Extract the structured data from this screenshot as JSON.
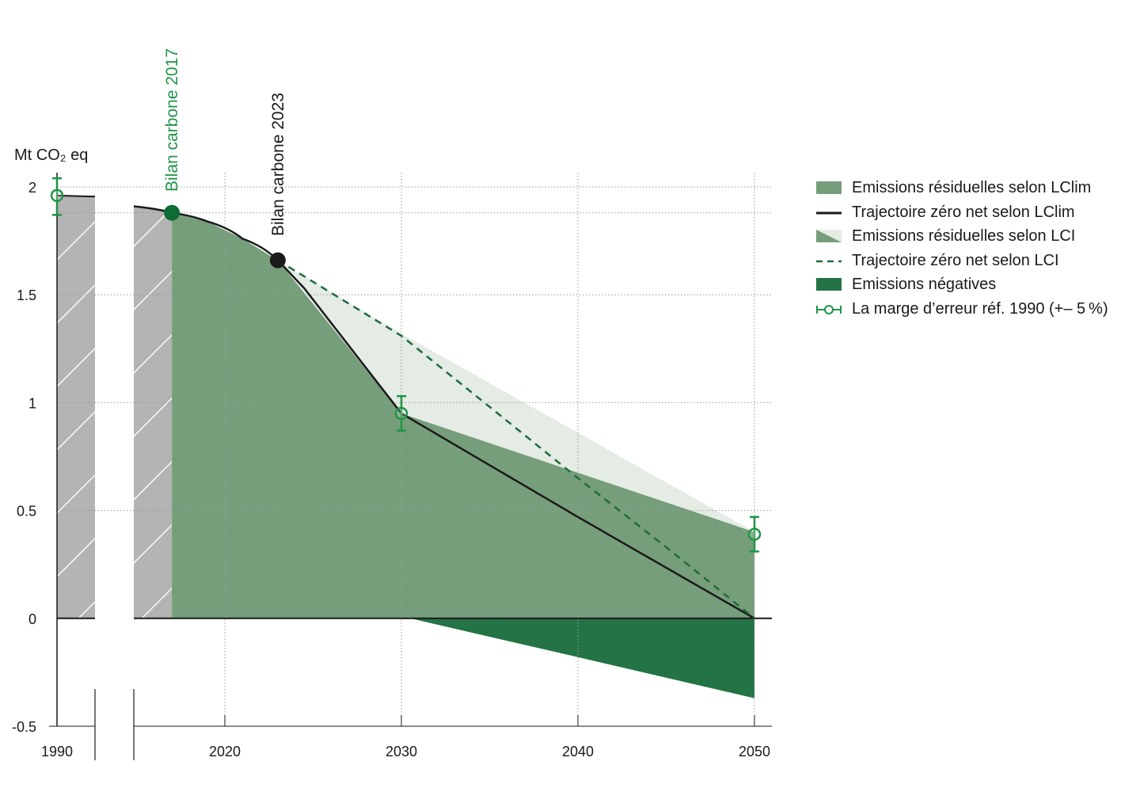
{
  "colors": {
    "lclim_residual": "#769e7a",
    "lci_residual": "#e4ece5",
    "negative": "#247345",
    "historic": "#b4b4b4",
    "lci_line": "#1f6b3d",
    "accent_green": "#1f9447",
    "dark_green": "#0d6b35",
    "axis": "#1a1a1a",
    "grid": "#999999"
  },
  "chart_data": {
    "type": "area",
    "ylabel": "Mt CO₂ eq",
    "ylim": [
      -0.5,
      2
    ],
    "y_ticks": [
      {
        "value": 2,
        "label": "2"
      },
      {
        "value": 1.5,
        "label": "1.5"
      },
      {
        "value": 1,
        "label": "1"
      },
      {
        "value": 0.5,
        "label": "0.5"
      },
      {
        "value": 0,
        "label": "0"
      },
      {
        "value": -0.5,
        "label": "-0.5"
      }
    ],
    "x_ticks": [
      {
        "value": 1990,
        "label": "1990"
      },
      {
        "value": 2020,
        "label": "2020"
      },
      {
        "value": 2030,
        "label": "2030"
      },
      {
        "value": 2040,
        "label": "2040"
      },
      {
        "value": 2050,
        "label": "2050"
      }
    ],
    "x_axis_break": "between 1990 and 2016",
    "grid": true,
    "legend_position": "right",
    "historic_emissions": [
      {
        "x": 1990,
        "y": 1.96
      },
      {
        "x": 2016,
        "y": 1.91
      },
      {
        "x": 2017,
        "y": 1.88
      }
    ],
    "series": [
      {
        "name": "Emissions résiduelles selon LClim",
        "kind": "area",
        "points": [
          {
            "x": 2017,
            "y": 1.88
          },
          {
            "x": 2020,
            "y": 1.8
          },
          {
            "x": 2023,
            "y": 1.66
          },
          {
            "x": 2030,
            "y": 0.95
          },
          {
            "x": 2050,
            "y": 0.4
          }
        ]
      },
      {
        "name": "Trajectoire zéro net selon LClim",
        "kind": "line",
        "points": [
          {
            "x": 2017,
            "y": 1.88
          },
          {
            "x": 2019,
            "y": 1.84
          },
          {
            "x": 2021,
            "y": 1.76
          },
          {
            "x": 2023,
            "y": 1.66
          },
          {
            "x": 2024.5,
            "y": 1.53
          },
          {
            "x": 2030,
            "y": 0.95
          },
          {
            "x": 2040,
            "y": 0.47
          },
          {
            "x": 2050,
            "y": 0
          }
        ]
      },
      {
        "name": "Emissions résiduelles selon LCI",
        "kind": "area",
        "points": [
          {
            "x": 2023,
            "y": 1.66
          },
          {
            "x": 2030,
            "y": 1.32
          },
          {
            "x": 2050,
            "y": 0.4
          }
        ]
      },
      {
        "name": "Trajectoire zéro net selon LCI",
        "kind": "line-dashed",
        "points": [
          {
            "x": 2023,
            "y": 1.66
          },
          {
            "x": 2030,
            "y": 1.31
          },
          {
            "x": 2035,
            "y": 0.98
          },
          {
            "x": 2040,
            "y": 0.65
          },
          {
            "x": 2045,
            "y": 0.33
          },
          {
            "x": 2050,
            "y": 0
          }
        ]
      },
      {
        "name": "Emissions négatives",
        "kind": "area",
        "points": [
          {
            "x": 2030.5,
            "y": 0
          },
          {
            "x": 2040,
            "y": -0.18
          },
          {
            "x": 2050,
            "y": -0.37
          }
        ]
      }
    ],
    "error_bars": {
      "name": "La marge d’erreur réf. 1990 (+– 5 %)",
      "points": [
        {
          "x": 1990,
          "y": 1.96,
          "low": 1.87,
          "high": 2.04
        },
        {
          "x": 2030,
          "y": 0.95,
          "low": 0.87,
          "high": 1.03
        },
        {
          "x": 2050,
          "y": 0.39,
          "low": 0.31,
          "high": 0.47
        }
      ]
    },
    "markers": [
      {
        "label": "Bilan carbone 2017",
        "x": 2017,
        "y": 1.88,
        "color": "dark_green"
      },
      {
        "label": "Bilan carbone 2023",
        "x": 2023,
        "y": 1.66,
        "color": "axis"
      }
    ]
  },
  "legend": {
    "items": [
      {
        "label": "Emissions résiduelles selon LClim",
        "swatch": "lclim-area"
      },
      {
        "label": "Trajectoire zéro net selon LClim",
        "swatch": "lclim-line"
      },
      {
        "label": "Emissions résiduelles selon LCI",
        "swatch": "lci-area"
      },
      {
        "label": "Trajectoire zéro net selon LCI",
        "swatch": "lci-dashed"
      },
      {
        "label": "Emissions négatives",
        "swatch": "negative-area"
      },
      {
        "label": "La marge d’erreur réf. 1990 (+– 5 %)",
        "swatch": "error-bar"
      }
    ]
  }
}
